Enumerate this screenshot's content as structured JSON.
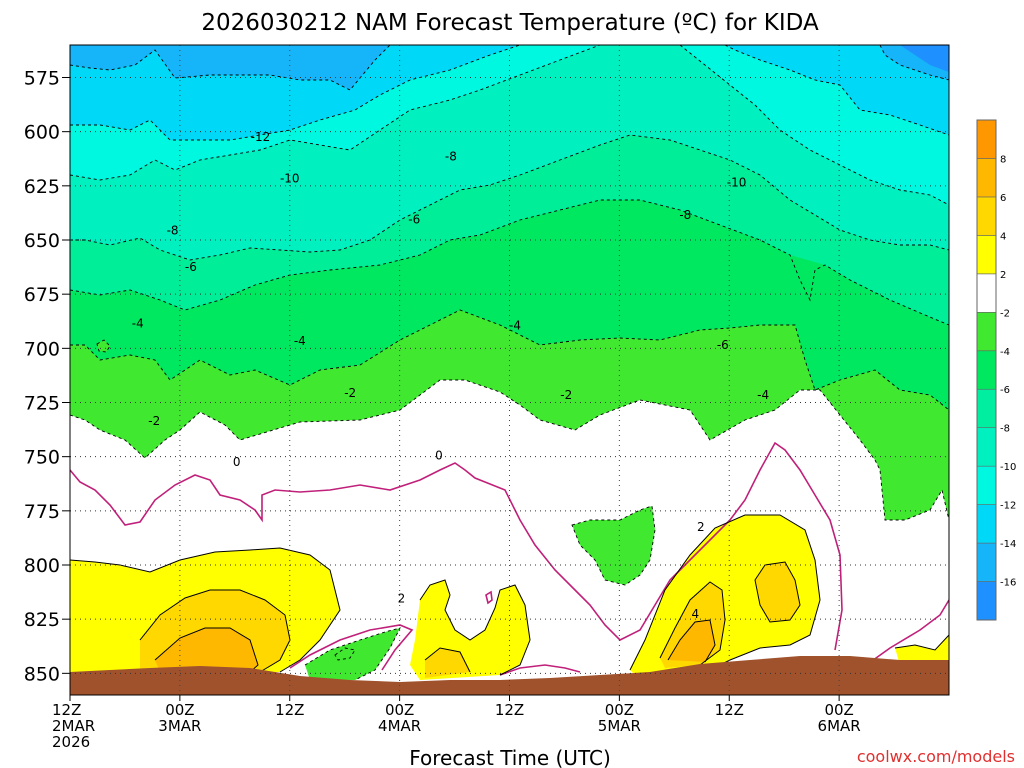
{
  "chart_data": {
    "type": "heatmap",
    "title": "2026030212 NAM Forecast Temperature (ºC) for KIDA",
    "xlabel": "Forecast Time (UTC)",
    "ylabel": "",
    "credit": "coolwx.com/models",
    "x_range_hours": [
      0,
      96
    ],
    "y_range_hPa": [
      560,
      860
    ],
    "y_ticks": [
      575,
      600,
      625,
      650,
      675,
      700,
      725,
      750,
      775,
      800,
      825,
      850
    ],
    "x_ticks": [
      {
        "hour": 0,
        "lines": [
          "12Z",
          "2MAR",
          "2026"
        ]
      },
      {
        "hour": 12,
        "lines": [
          "00Z",
          "3MAR"
        ]
      },
      {
        "hour": 24,
        "lines": [
          "12Z"
        ]
      },
      {
        "hour": 36,
        "lines": [
          "00Z",
          "4MAR"
        ]
      },
      {
        "hour": 48,
        "lines": [
          "12Z"
        ]
      },
      {
        "hour": 60,
        "lines": [
          "00Z",
          "5MAR"
        ]
      },
      {
        "hour": 72,
        "lines": [
          "12Z"
        ]
      },
      {
        "hour": 84,
        "lines": [
          "00Z",
          "6MAR"
        ]
      }
    ],
    "grid": true,
    "legend": {
      "placement": "right",
      "bins": [
        {
          "min": -18,
          "max": -16,
          "color": "#1e90ff"
        },
        {
          "min": -16,
          "max": -14,
          "color": "#16b4f8"
        },
        {
          "min": -14,
          "max": -12,
          "color": "#00d8f8"
        },
        {
          "min": -12,
          "max": -10,
          "color": "#00f8e0"
        },
        {
          "min": -10,
          "max": -8,
          "color": "#00f0c0"
        },
        {
          "min": -8,
          "max": -6,
          "color": "#00eea0"
        },
        {
          "min": -6,
          "max": -4,
          "color": "#00e860"
        },
        {
          "min": -4,
          "max": -2,
          "color": "#40e830"
        },
        {
          "min": -2,
          "max": 2,
          "color": "#ffffff"
        },
        {
          "min": 2,
          "max": 4,
          "color": "#ffff00"
        },
        {
          "min": 4,
          "max": 6,
          "color": "#ffd800"
        },
        {
          "min": 6,
          "max": 8,
          "color": "#ffb800"
        },
        {
          "min": 8,
          "max": 10,
          "color": "#ff9800"
        }
      ],
      "tick_labels": [
        "-16",
        "-14",
        "-12",
        "-10",
        "-8",
        "-6",
        "-4",
        "-2",
        "2",
        "4",
        "6",
        "8"
      ]
    },
    "isotherm_labels": [
      {
        "text": "-12",
        "hour": 20.8,
        "hPa": 603
      },
      {
        "text": "-10",
        "hour": 24.0,
        "hPa": 622
      },
      {
        "text": "-8",
        "hour": 41.6,
        "hPa": 612
      },
      {
        "text": "-8",
        "hour": 11.2,
        "hPa": 646
      },
      {
        "text": "-10",
        "hour": 72.8,
        "hPa": 624
      },
      {
        "text": "-8",
        "hour": 67.2,
        "hPa": 639
      },
      {
        "text": "-6",
        "hour": 37.6,
        "hPa": 641
      },
      {
        "text": "-6",
        "hour": 13.2,
        "hPa": 663
      },
      {
        "text": "-4",
        "hour": 7.4,
        "hPa": 689
      },
      {
        "text": "-4",
        "hour": 25.1,
        "hPa": 697
      },
      {
        "text": "-4",
        "hour": 48.6,
        "hPa": 690
      },
      {
        "text": "-6",
        "hour": 71.3,
        "hPa": 699
      },
      {
        "text": "-4",
        "hour": 75.7,
        "hPa": 722
      },
      {
        "text": "-2",
        "hour": 30.6,
        "hPa": 721
      },
      {
        "text": "-2",
        "hour": 54.2,
        "hPa": 722
      },
      {
        "text": "-2",
        "hour": 9.2,
        "hPa": 734
      },
      {
        "text": "0",
        "hour": 18.2,
        "hPa": 753
      },
      {
        "text": "0",
        "hour": 40.3,
        "hPa": 750
      },
      {
        "text": "2",
        "hour": 68.9,
        "hPa": 783
      },
      {
        "text": "2",
        "hour": 36.2,
        "hPa": 816
      },
      {
        "text": "4",
        "hour": 68.3,
        "hPa": 823
      }
    ]
  }
}
